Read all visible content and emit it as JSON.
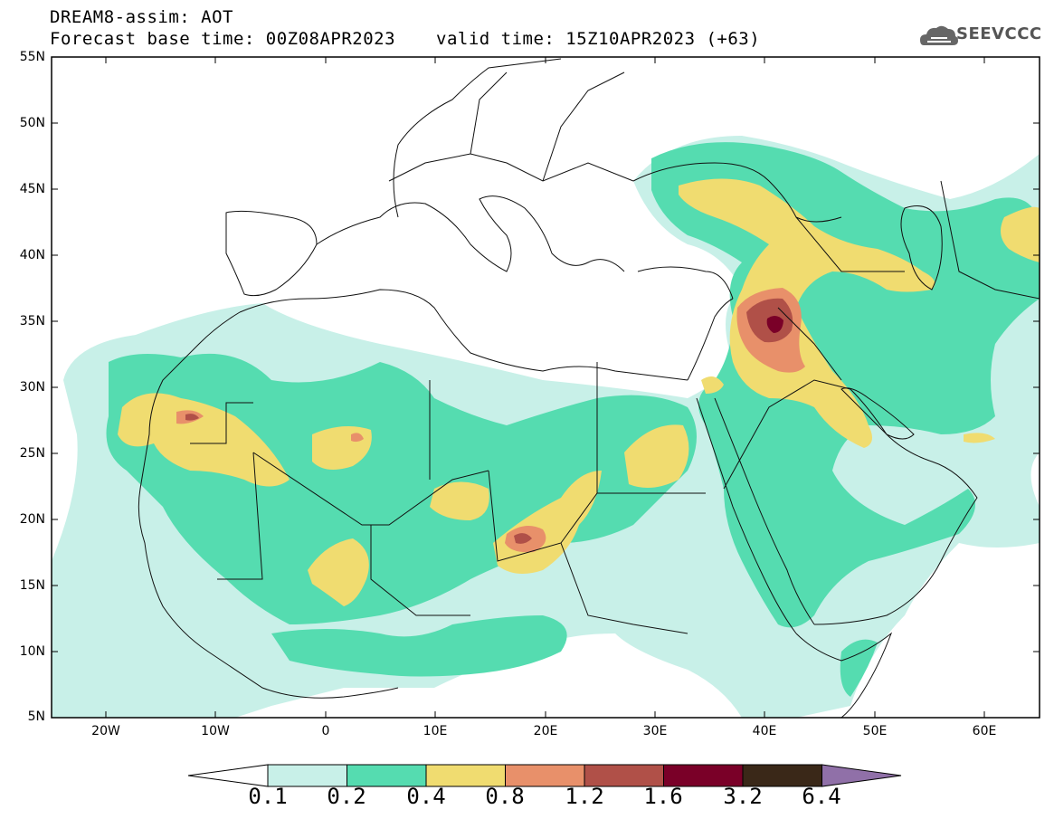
{
  "title": {
    "line1": "DREAM8-assim: AOT",
    "line2": "Forecast base time: 00Z08APR2023",
    "valid": "valid time: 15Z10APR2023 (+63)"
  },
  "logo": {
    "text": "SEEVCCC",
    "icon": "cloud-icon"
  },
  "map": {
    "lat_labels": [
      "55N",
      "50N",
      "45N",
      "40N",
      "35N",
      "30N",
      "25N",
      "20N",
      "15N",
      "10N",
      "5N"
    ],
    "lon_labels": [
      "20W",
      "10W",
      "0",
      "10E",
      "20E",
      "30E",
      "40E",
      "50E",
      "60E"
    ],
    "lon_range": [
      -25,
      65
    ],
    "lat_range": [
      5,
      55
    ]
  },
  "colorbar": {
    "labels": [
      "0.1",
      "0.2",
      "0.4",
      "0.8",
      "1.2",
      "1.6",
      "3.2",
      "6.4"
    ],
    "colors": [
      "#c8f0e8",
      "#55dcb0",
      "#f0dc70",
      "#e8906a",
      "#b05048",
      "#7a0028",
      "#3a2818",
      "#9070a8"
    ]
  }
}
